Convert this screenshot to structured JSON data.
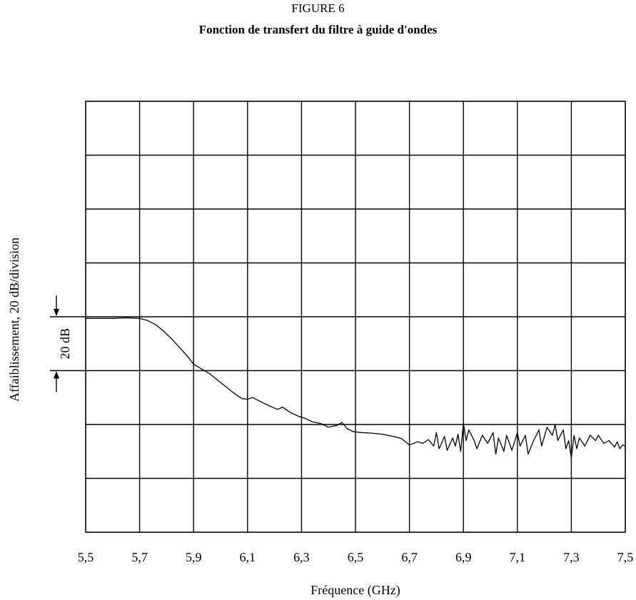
{
  "figure": {
    "label": "FIGURE 6",
    "title": "Fonction de transfert du filtre à guide d'ondes"
  },
  "chart_data": {
    "type": "line",
    "xlabel": "Fréquence (GHz)",
    "ylabel": "Affaiblissement, 20 dB/division",
    "x_ticks": [
      "5,5",
      "5,7",
      "5,9",
      "6,1",
      "6,3",
      "6,5",
      "6,7",
      "6,9",
      "7,1",
      "7,3",
      "7,5"
    ],
    "xlim": [
      5.5,
      7.5
    ],
    "y_divisions": 8,
    "y_units_per_division_db": 20,
    "grid": true,
    "scale_marker": {
      "label": "20 dB",
      "top_division": 4,
      "bottom_division": 5
    },
    "series": [
      {
        "points": [
          [
            5.5,
            4.03
          ],
          [
            5.55,
            4.03
          ],
          [
            5.6,
            4.03
          ],
          [
            5.65,
            4.02
          ],
          [
            5.7,
            4.03
          ],
          [
            5.73,
            4.07
          ],
          [
            5.76,
            4.15
          ],
          [
            5.79,
            4.27
          ],
          [
            5.82,
            4.42
          ],
          [
            5.85,
            4.58
          ],
          [
            5.88,
            4.75
          ],
          [
            5.9,
            4.88
          ],
          [
            5.93,
            4.97
          ],
          [
            5.96,
            5.06
          ],
          [
            5.99,
            5.18
          ],
          [
            6.02,
            5.3
          ],
          [
            6.05,
            5.42
          ],
          [
            6.08,
            5.52
          ],
          [
            6.1,
            5.53
          ],
          [
            6.12,
            5.5
          ],
          [
            6.15,
            5.58
          ],
          [
            6.18,
            5.65
          ],
          [
            6.21,
            5.72
          ],
          [
            6.23,
            5.68
          ],
          [
            6.26,
            5.78
          ],
          [
            6.29,
            5.85
          ],
          [
            6.31,
            5.88
          ],
          [
            6.34,
            5.95
          ],
          [
            6.37,
            5.98
          ],
          [
            6.4,
            6.05
          ],
          [
            6.43,
            6.02
          ],
          [
            6.45,
            5.96
          ],
          [
            6.47,
            6.08
          ],
          [
            6.49,
            6.13
          ],
          [
            6.52,
            6.15
          ],
          [
            6.56,
            6.16
          ],
          [
            6.6,
            6.18
          ],
          [
            6.64,
            6.22
          ],
          [
            6.67,
            6.26
          ],
          [
            6.7,
            6.38
          ],
          [
            6.73,
            6.32
          ],
          [
            6.75,
            6.35
          ],
          [
            6.77,
            6.28
          ],
          [
            6.79,
            6.4
          ],
          [
            6.8,
            6.15
          ],
          [
            6.81,
            6.45
          ],
          [
            6.83,
            6.22
          ],
          [
            6.84,
            6.48
          ],
          [
            6.86,
            6.25
          ],
          [
            6.87,
            6.4
          ],
          [
            6.88,
            6.18
          ],
          [
            6.89,
            6.5
          ],
          [
            6.9,
            5.98
          ],
          [
            6.91,
            6.3
          ],
          [
            6.92,
            6.1
          ],
          [
            6.94,
            6.3
          ],
          [
            6.95,
            6.45
          ],
          [
            6.97,
            6.2
          ],
          [
            6.99,
            6.35
          ],
          [
            7.01,
            6.15
          ],
          [
            7.02,
            6.55
          ],
          [
            7.03,
            6.25
          ],
          [
            7.05,
            6.5
          ],
          [
            7.06,
            6.2
          ],
          [
            7.08,
            6.48
          ],
          [
            7.1,
            6.15
          ],
          [
            7.11,
            6.4
          ],
          [
            7.13,
            6.2
          ],
          [
            7.14,
            6.55
          ],
          [
            7.16,
            6.3
          ],
          [
            7.18,
            6.1
          ],
          [
            7.19,
            6.4
          ],
          [
            7.21,
            6.05
          ],
          [
            7.23,
            6.2
          ],
          [
            7.24,
            6.0
          ],
          [
            7.25,
            6.3
          ],
          [
            7.27,
            6.1
          ],
          [
            7.28,
            6.45
          ],
          [
            7.29,
            6.3
          ],
          [
            7.3,
            6.62
          ],
          [
            7.31,
            6.2
          ],
          [
            7.32,
            6.45
          ],
          [
            7.33,
            6.25
          ],
          [
            7.35,
            6.4
          ],
          [
            7.37,
            6.2
          ],
          [
            7.39,
            6.3
          ],
          [
            7.4,
            6.2
          ],
          [
            7.42,
            6.35
          ],
          [
            7.44,
            6.3
          ],
          [
            7.46,
            6.42
          ],
          [
            7.47,
            6.32
          ],
          [
            7.48,
            6.45
          ],
          [
            7.49,
            6.38
          ],
          [
            7.5,
            6.4
          ]
        ]
      }
    ]
  }
}
